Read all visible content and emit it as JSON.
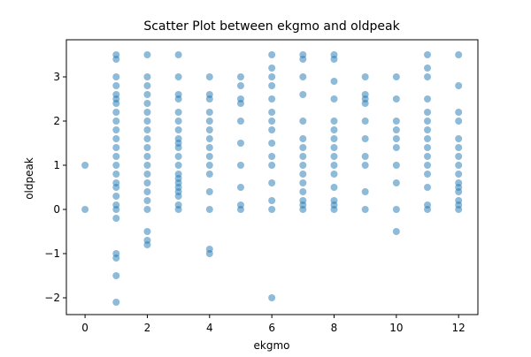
{
  "chart_data": {
    "type": "scatter",
    "title": "Scatter Plot between ekgmo and oldpeak",
    "x_label": "ekgmo",
    "y_label": "oldpeak",
    "color": "#1f77b4",
    "x": [
      0,
      0,
      1,
      1,
      1,
      1,
      1,
      1,
      1,
      1,
      1,
      1,
      1,
      1,
      1,
      1,
      1,
      1,
      1,
      1,
      1,
      1,
      1,
      1,
      1,
      1,
      1,
      2,
      2,
      2,
      2,
      2,
      2,
      2,
      2,
      2,
      2,
      2,
      2,
      2,
      2,
      2,
      2,
      2,
      2,
      2,
      2,
      3,
      3,
      3,
      3,
      3,
      3,
      3,
      3,
      3,
      3,
      3,
      3,
      3,
      3,
      3,
      3,
      3,
      3,
      3,
      3,
      4,
      4,
      4,
      4,
      4,
      4,
      4,
      4,
      4,
      4,
      4,
      4,
      4,
      4,
      4,
      5,
      5,
      5,
      5,
      5,
      5,
      5,
      5,
      5,
      5,
      6,
      6,
      6,
      6,
      6,
      6,
      6,
      6,
      6,
      6,
      6,
      6,
      6,
      6,
      6,
      7,
      7,
      7,
      7,
      7,
      7,
      7,
      7,
      7,
      7,
      7,
      7,
      7,
      7,
      7,
      8,
      8,
      8,
      8,
      8,
      8,
      8,
      8,
      8,
      8,
      8,
      8,
      8,
      8,
      8,
      9,
      9,
      9,
      9,
      9,
      9,
      9,
      9,
      9,
      9,
      10,
      10,
      10,
      10,
      10,
      10,
      10,
      10,
      10,
      10,
      11,
      11,
      11,
      11,
      11,
      11,
      11,
      11,
      11,
      11,
      11,
      11,
      11,
      11,
      11,
      12,
      12,
      12,
      12,
      12,
      12,
      12,
      12,
      12,
      12,
      12,
      12,
      12,
      12,
      12
    ],
    "y": [
      0,
      1,
      3.5,
      3.4,
      3,
      2.8,
      2.6,
      2.5,
      2.4,
      2.2,
      2,
      1.8,
      1.6,
      1.4,
      1.2,
      1,
      0.8,
      0.6,
      0.3,
      0.1,
      0,
      -0.2,
      -1,
      -1.1,
      -1.5,
      -2.1,
      0.5,
      3.5,
      3,
      2.8,
      2.6,
      2.4,
      2.2,
      2,
      1.8,
      1.6,
      1.4,
      1.2,
      1,
      0.8,
      0.6,
      0.4,
      0.2,
      0,
      -0.5,
      -0.7,
      -0.8,
      3.5,
      3,
      2.6,
      2.5,
      2.2,
      2,
      1.8,
      1.6,
      1.5,
      1.4,
      1.2,
      1,
      0.8,
      0.7,
      0.6,
      0.5,
      0.4,
      0.3,
      0.1,
      0,
      3,
      2.6,
      2.5,
      2.2,
      2,
      1.8,
      1.6,
      1.4,
      1.2,
      1,
      0.8,
      0.4,
      0,
      -0.9,
      -1,
      3,
      2.8,
      2.5,
      2.4,
      2,
      1.5,
      1,
      0.5,
      0.1,
      0,
      3.5,
      3.2,
      3,
      2.8,
      2.5,
      2.2,
      2,
      1.8,
      1.5,
      1.2,
      1,
      0.6,
      0.2,
      0,
      -2,
      3.5,
      3.4,
      3,
      2.6,
      2,
      1.6,
      1.4,
      1.2,
      1,
      0.8,
      0.6,
      0.4,
      0.2,
      0.1,
      0,
      3.5,
      3.4,
      2.9,
      2.5,
      2,
      1.8,
      1.6,
      1.4,
      1.2,
      1,
      0.8,
      0.5,
      0.2,
      0.1,
      0,
      3,
      2.6,
      2.5,
      2.4,
      2,
      1.6,
      1.2,
      1,
      0.4,
      0,
      3,
      2.5,
      2,
      1.8,
      1.6,
      1.4,
      1,
      0.6,
      0,
      -0.5,
      3.5,
      3.2,
      3,
      2.5,
      2.2,
      2,
      1.8,
      1.6,
      1.4,
      1.2,
      1,
      0.8,
      0.5,
      0.1,
      0,
      3.5,
      2.8,
      2.2,
      2,
      1.6,
      1.4,
      1.2,
      1,
      0.8,
      0.6,
      0.5,
      0.4,
      0.2,
      0.1,
      0
    ],
    "xlim": [
      -0.6,
      12.62
    ],
    "xticks": [
      0,
      2,
      4,
      6,
      8,
      10,
      12
    ],
    "ylim": [
      -2.38,
      3.84
    ],
    "yticks": [
      {
        "value": -2,
        "label": "−2"
      },
      {
        "value": -1,
        "label": "−1"
      },
      0,
      1,
      2,
      3
    ]
  }
}
